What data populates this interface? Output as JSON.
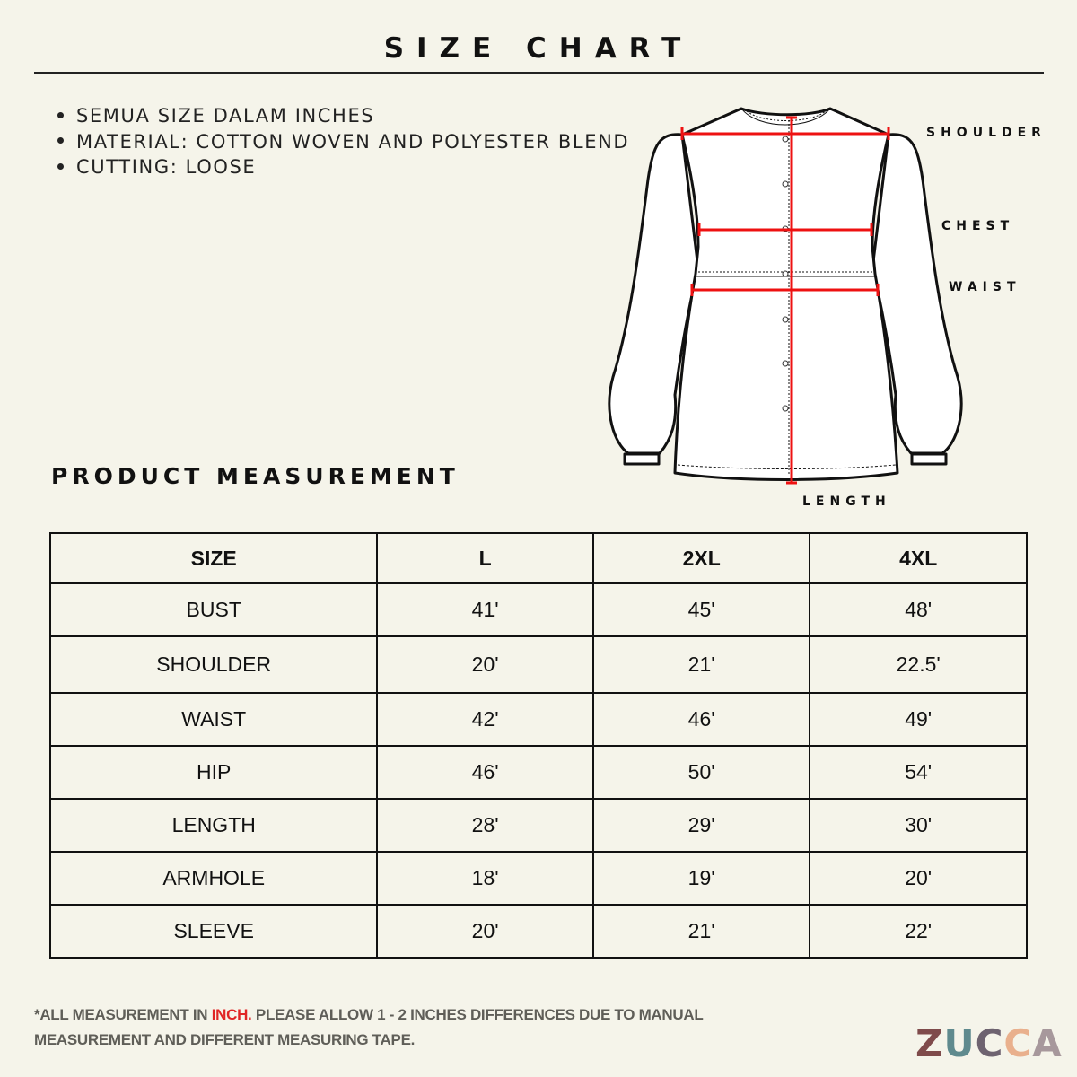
{
  "title": "SIZE CHART",
  "notes": [
    "SEMUA SIZE DALAM INCHES",
    "MATERIAL: COTTON WOVEN AND POLYESTER BLEND",
    "CUTTING: LOOSE"
  ],
  "diagram_labels": {
    "shoulder": "SHOULDER",
    "chest": "CHEST",
    "waist": "WAIST",
    "length": "LENGTH"
  },
  "section_title": "PRODUCT MEASUREMENT",
  "table": {
    "headers": [
      "SIZE",
      "L",
      "2XL",
      "4XL"
    ],
    "rows": [
      [
        "BUST",
        "41'",
        "45'",
        "48'"
      ],
      [
        "SHOULDER",
        "20'",
        "21'",
        "22.5'"
      ],
      [
        "WAIST",
        "42'",
        "46'",
        "49'"
      ],
      [
        "HIP",
        "46'",
        "50'",
        "54'"
      ],
      [
        "LENGTH",
        "28'",
        "29'",
        "30'"
      ],
      [
        "ARMHOLE",
        "18'",
        "19'",
        "20'"
      ],
      [
        "SLEEVE",
        "20'",
        "21'",
        "22'"
      ]
    ]
  },
  "footer": {
    "prefix": "*ALL MEASUREMENT IN ",
    "highlight": "INCH.",
    "rest": " PLEASE ALLOW 1 - 2 INCHES DIFFERENCES DUE TO MANUAL MEASUREMENT AND DIFFERENT MEASURING TAPE."
  },
  "logo": {
    "text": "ZUCCA",
    "letter_colors": [
      "#7f4b4b",
      "#5f8a8e",
      "#6e6370",
      "#e9b08d",
      "#a7989c"
    ]
  },
  "colors": {
    "background": "#f5f4ea",
    "measure_line": "#ee1111",
    "highlight": "#e02424"
  }
}
